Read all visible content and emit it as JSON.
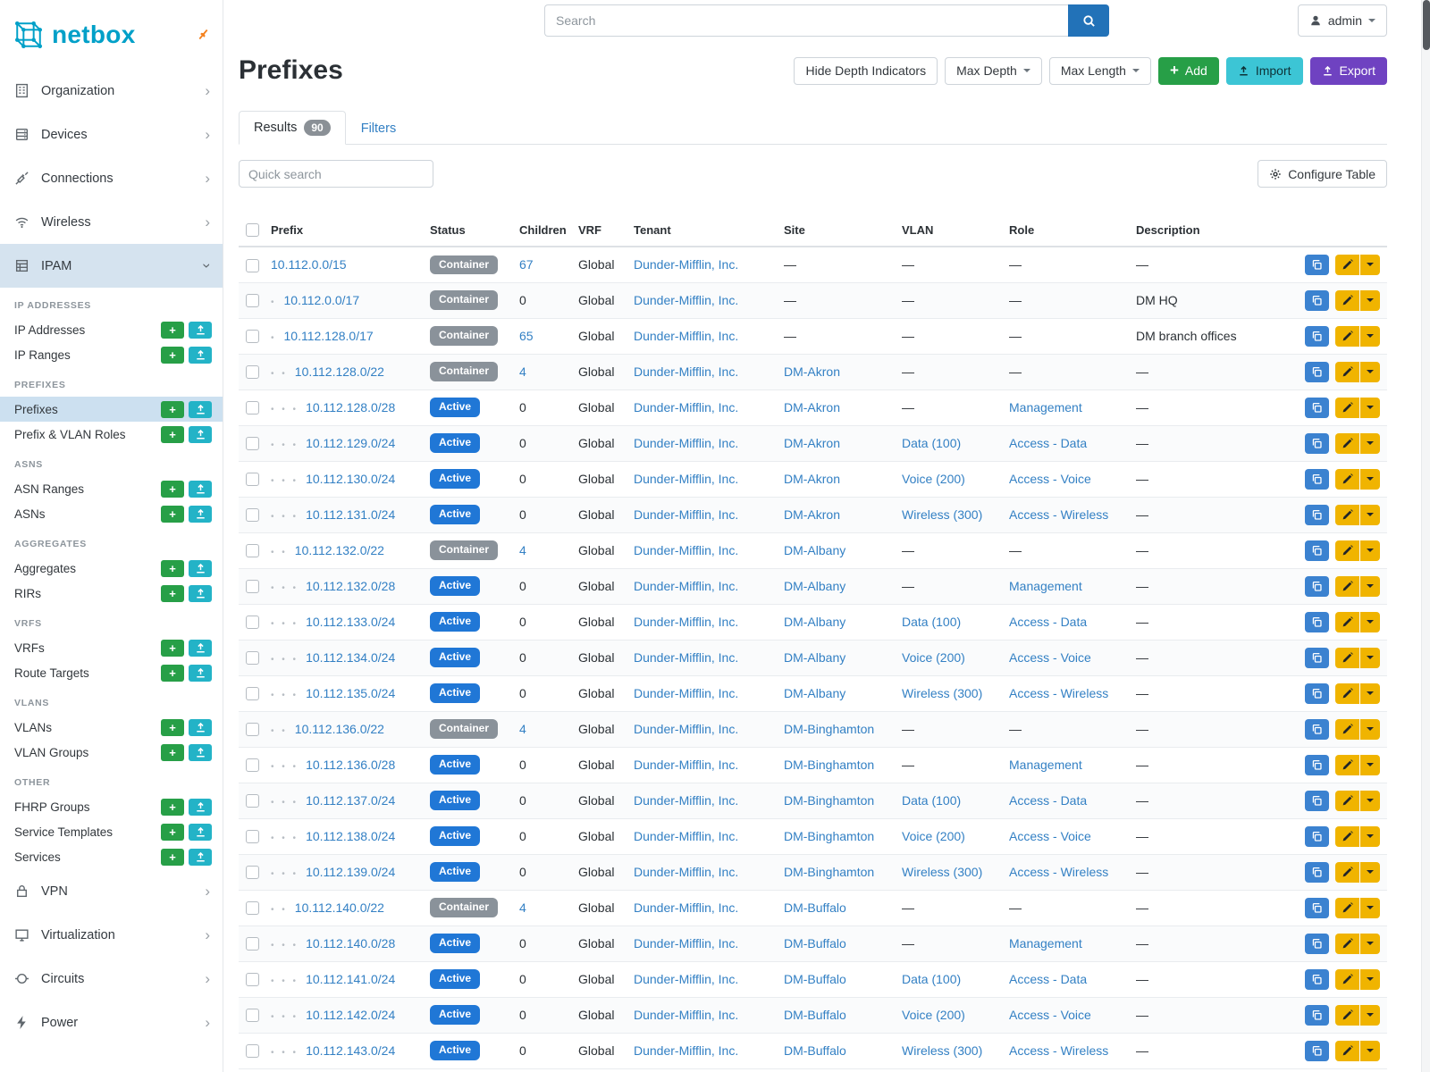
{
  "colors": {
    "brand": "#00a0c8",
    "link": "#3380c4",
    "badge_active": "#2077d6",
    "badge_container": "#8a929a",
    "btn_add": "#279f47",
    "btn_import": "#3cc5d5",
    "mini_upload": "#23b3c7",
    "btn_export": "#6f42c1",
    "btn_warning": "#f0b400",
    "btn_action_blue": "#3b82d0",
    "sidebar_active": "#d5e3ef",
    "subitem_active": "#cce0f0",
    "pin": "#f4821f",
    "search_btn": "#2272b8"
  },
  "brand": {
    "name": "netbox"
  },
  "topbar": {
    "search_placeholder": "Search",
    "user": "admin"
  },
  "sidebar": {
    "top_items": [
      {
        "label": "Organization",
        "icon": "building-icon"
      },
      {
        "label": "Devices",
        "icon": "rack-icon"
      },
      {
        "label": "Connections",
        "icon": "cable-icon"
      },
      {
        "label": "Wireless",
        "icon": "wifi-icon"
      }
    ],
    "ipam_label": "IPAM",
    "ipam_groups": [
      {
        "heading": "IP ADDRESSES",
        "items": [
          "IP Addresses",
          "IP Ranges"
        ]
      },
      {
        "heading": "PREFIXES",
        "items": [
          "Prefixes",
          "Prefix & VLAN Roles"
        ],
        "active": "Prefixes"
      },
      {
        "heading": "ASNS",
        "items": [
          "ASN Ranges",
          "ASNs"
        ]
      },
      {
        "heading": "AGGREGATES",
        "items": [
          "Aggregates",
          "RIRs"
        ]
      },
      {
        "heading": "VRFS",
        "items": [
          "VRFs",
          "Route Targets"
        ]
      },
      {
        "heading": "VLANS",
        "items": [
          "VLANs",
          "VLAN Groups"
        ]
      },
      {
        "heading": "OTHER",
        "items": [
          "FHRP Groups",
          "Service Templates",
          "Services"
        ]
      }
    ],
    "bottom_items": [
      {
        "label": "VPN",
        "icon": "vpn-icon"
      },
      {
        "label": "Virtualization",
        "icon": "vm-icon"
      },
      {
        "label": "Circuits",
        "icon": "circuit-icon"
      },
      {
        "label": "Power",
        "icon": "power-icon"
      }
    ]
  },
  "page": {
    "title": "Prefixes",
    "actions": {
      "hide_depth": "Hide Depth Indicators",
      "max_depth": "Max Depth",
      "max_length": "Max Length",
      "add": "Add",
      "import": "Import",
      "export": "Export"
    },
    "tabs": {
      "results": "Results",
      "results_count": "90",
      "filters": "Filters"
    },
    "quick_search_placeholder": "Quick search",
    "configure_table": "Configure Table"
  },
  "table": {
    "empty_marker": "—",
    "columns": [
      "Prefix",
      "Status",
      "Children",
      "VRF",
      "Tenant",
      "Site",
      "VLAN",
      "Role",
      "Description"
    ],
    "rows": [
      {
        "depth": 0,
        "prefix": "10.112.0.0/15",
        "status": "Container",
        "children": "67",
        "vrf": "Global",
        "tenant": "Dunder-Mifflin, Inc.",
        "site": "",
        "vlan": "",
        "role": "",
        "description": ""
      },
      {
        "depth": 1,
        "prefix": "10.112.0.0/17",
        "status": "Container",
        "children": "0",
        "vrf": "Global",
        "tenant": "Dunder-Mifflin, Inc.",
        "site": "",
        "vlan": "",
        "role": "",
        "description": "DM HQ"
      },
      {
        "depth": 1,
        "prefix": "10.112.128.0/17",
        "status": "Container",
        "children": "65",
        "vrf": "Global",
        "tenant": "Dunder-Mifflin, Inc.",
        "site": "",
        "vlan": "",
        "role": "",
        "description": "DM branch offices"
      },
      {
        "depth": 2,
        "prefix": "10.112.128.0/22",
        "status": "Container",
        "children": "4",
        "vrf": "Global",
        "tenant": "Dunder-Mifflin, Inc.",
        "site": "DM-Akron",
        "vlan": "",
        "role": "",
        "description": ""
      },
      {
        "depth": 3,
        "prefix": "10.112.128.0/28",
        "status": "Active",
        "children": "0",
        "vrf": "Global",
        "tenant": "Dunder-Mifflin, Inc.",
        "site": "DM-Akron",
        "vlan": "",
        "role": "Management",
        "description": ""
      },
      {
        "depth": 3,
        "prefix": "10.112.129.0/24",
        "status": "Active",
        "children": "0",
        "vrf": "Global",
        "tenant": "Dunder-Mifflin, Inc.",
        "site": "DM-Akron",
        "vlan": "Data (100)",
        "role": "Access - Data",
        "description": ""
      },
      {
        "depth": 3,
        "prefix": "10.112.130.0/24",
        "status": "Active",
        "children": "0",
        "vrf": "Global",
        "tenant": "Dunder-Mifflin, Inc.",
        "site": "DM-Akron",
        "vlan": "Voice (200)",
        "role": "Access - Voice",
        "description": ""
      },
      {
        "depth": 3,
        "prefix": "10.112.131.0/24",
        "status": "Active",
        "children": "0",
        "vrf": "Global",
        "tenant": "Dunder-Mifflin, Inc.",
        "site": "DM-Akron",
        "vlan": "Wireless (300)",
        "role": "Access - Wireless",
        "description": ""
      },
      {
        "depth": 2,
        "prefix": "10.112.132.0/22",
        "status": "Container",
        "children": "4",
        "vrf": "Global",
        "tenant": "Dunder-Mifflin, Inc.",
        "site": "DM-Albany",
        "vlan": "",
        "role": "",
        "description": ""
      },
      {
        "depth": 3,
        "prefix": "10.112.132.0/28",
        "status": "Active",
        "children": "0",
        "vrf": "Global",
        "tenant": "Dunder-Mifflin, Inc.",
        "site": "DM-Albany",
        "vlan": "",
        "role": "Management",
        "description": ""
      },
      {
        "depth": 3,
        "prefix": "10.112.133.0/24",
        "status": "Active",
        "children": "0",
        "vrf": "Global",
        "tenant": "Dunder-Mifflin, Inc.",
        "site": "DM-Albany",
        "vlan": "Data (100)",
        "role": "Access - Data",
        "description": ""
      },
      {
        "depth": 3,
        "prefix": "10.112.134.0/24",
        "status": "Active",
        "children": "0",
        "vrf": "Global",
        "tenant": "Dunder-Mifflin, Inc.",
        "site": "DM-Albany",
        "vlan": "Voice (200)",
        "role": "Access - Voice",
        "description": ""
      },
      {
        "depth": 3,
        "prefix": "10.112.135.0/24",
        "status": "Active",
        "children": "0",
        "vrf": "Global",
        "tenant": "Dunder-Mifflin, Inc.",
        "site": "DM-Albany",
        "vlan": "Wireless (300)",
        "role": "Access - Wireless",
        "description": ""
      },
      {
        "depth": 2,
        "prefix": "10.112.136.0/22",
        "status": "Container",
        "children": "4",
        "vrf": "Global",
        "tenant": "Dunder-Mifflin, Inc.",
        "site": "DM-Binghamton",
        "vlan": "",
        "role": "",
        "description": ""
      },
      {
        "depth": 3,
        "prefix": "10.112.136.0/28",
        "status": "Active",
        "children": "0",
        "vrf": "Global",
        "tenant": "Dunder-Mifflin, Inc.",
        "site": "DM-Binghamton",
        "vlan": "",
        "role": "Management",
        "description": ""
      },
      {
        "depth": 3,
        "prefix": "10.112.137.0/24",
        "status": "Active",
        "children": "0",
        "vrf": "Global",
        "tenant": "Dunder-Mifflin, Inc.",
        "site": "DM-Binghamton",
        "vlan": "Data (100)",
        "role": "Access - Data",
        "description": ""
      },
      {
        "depth": 3,
        "prefix": "10.112.138.0/24",
        "status": "Active",
        "children": "0",
        "vrf": "Global",
        "tenant": "Dunder-Mifflin, Inc.",
        "site": "DM-Binghamton",
        "vlan": "Voice (200)",
        "role": "Access - Voice",
        "description": ""
      },
      {
        "depth": 3,
        "prefix": "10.112.139.0/24",
        "status": "Active",
        "children": "0",
        "vrf": "Global",
        "tenant": "Dunder-Mifflin, Inc.",
        "site": "DM-Binghamton",
        "vlan": "Wireless (300)",
        "role": "Access - Wireless",
        "description": ""
      },
      {
        "depth": 2,
        "prefix": "10.112.140.0/22",
        "status": "Container",
        "children": "4",
        "vrf": "Global",
        "tenant": "Dunder-Mifflin, Inc.",
        "site": "DM-Buffalo",
        "vlan": "",
        "role": "",
        "description": ""
      },
      {
        "depth": 3,
        "prefix": "10.112.140.0/28",
        "status": "Active",
        "children": "0",
        "vrf": "Global",
        "tenant": "Dunder-Mifflin, Inc.",
        "site": "DM-Buffalo",
        "vlan": "",
        "role": "Management",
        "description": ""
      },
      {
        "depth": 3,
        "prefix": "10.112.141.0/24",
        "status": "Active",
        "children": "0",
        "vrf": "Global",
        "tenant": "Dunder-Mifflin, Inc.",
        "site": "DM-Buffalo",
        "vlan": "Data (100)",
        "role": "Access - Data",
        "description": ""
      },
      {
        "depth": 3,
        "prefix": "10.112.142.0/24",
        "status": "Active",
        "children": "0",
        "vrf": "Global",
        "tenant": "Dunder-Mifflin, Inc.",
        "site": "DM-Buffalo",
        "vlan": "Voice (200)",
        "role": "Access - Voice",
        "description": ""
      },
      {
        "depth": 3,
        "prefix": "10.112.143.0/24",
        "status": "Active",
        "children": "0",
        "vrf": "Global",
        "tenant": "Dunder-Mifflin, Inc.",
        "site": "DM-Buffalo",
        "vlan": "Wireless (300)",
        "role": "Access - Wireless",
        "description": ""
      }
    ]
  }
}
